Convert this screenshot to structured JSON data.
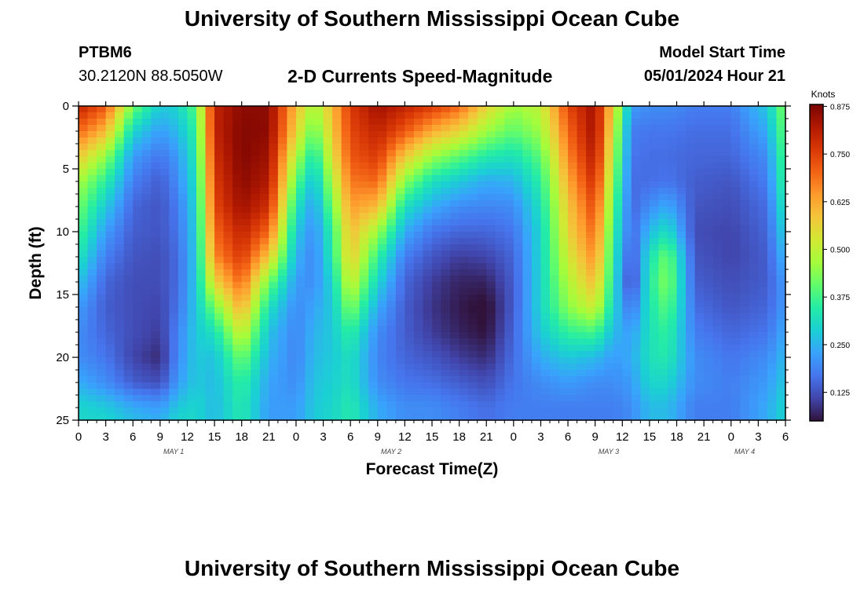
{
  "header": {
    "title": "University of Southern Mississippi Ocean Cube",
    "station_id": "PTBM6",
    "coordinates": "30.2120N  88.5050W",
    "subtitle": "2-D Currents Speed-Magnitude",
    "model_start_label": "Model Start Time",
    "model_start_value": "05/01/2024 Hour 21"
  },
  "footer": {
    "title": "University of Southern Mississippi Ocean Cube"
  },
  "colors": {
    "colormap": [
      "#30123b",
      "#4145ab",
      "#4675ed",
      "#39a2fc",
      "#1bcfd4",
      "#24eca6",
      "#61fc6c",
      "#a4fc3b",
      "#d1e834",
      "#f3c63a",
      "#fe9b2d",
      "#f36315",
      "#d93806",
      "#b11901",
      "#7a0402"
    ]
  },
  "chart_data": {
    "type": "heatmap",
    "xlabel": "Forecast Time(Z)",
    "ylabel": "Depth (ft)",
    "xlim": [
      0,
      78
    ],
    "ylim": [
      0,
      25
    ],
    "y_inverted": true,
    "x_ticks": [
      {
        "t": 0,
        "label": "0"
      },
      {
        "t": 3,
        "label": "3"
      },
      {
        "t": 6,
        "label": "6"
      },
      {
        "t": 9,
        "label": "9"
      },
      {
        "t": 12,
        "label": "12"
      },
      {
        "t": 15,
        "label": "15"
      },
      {
        "t": 18,
        "label": "18"
      },
      {
        "t": 21,
        "label": "21"
      },
      {
        "t": 24,
        "label": "0"
      },
      {
        "t": 27,
        "label": "3"
      },
      {
        "t": 30,
        "label": "6"
      },
      {
        "t": 33,
        "label": "9"
      },
      {
        "t": 36,
        "label": "12"
      },
      {
        "t": 39,
        "label": "15"
      },
      {
        "t": 42,
        "label": "18"
      },
      {
        "t": 45,
        "label": "21"
      },
      {
        "t": 48,
        "label": "0"
      },
      {
        "t": 51,
        "label": "3"
      },
      {
        "t": 54,
        "label": "6"
      },
      {
        "t": 57,
        "label": "9"
      },
      {
        "t": 60,
        "label": "12"
      },
      {
        "t": 63,
        "label": "15"
      },
      {
        "t": 66,
        "label": "18"
      },
      {
        "t": 69,
        "label": "21"
      },
      {
        "t": 72,
        "label": "0"
      },
      {
        "t": 75,
        "label": "3"
      },
      {
        "t": 78,
        "label": "6"
      }
    ],
    "y_ticks": [
      {
        "d": 0,
        "label": "0"
      },
      {
        "d": 5,
        "label": "5"
      },
      {
        "d": 10,
        "label": "10"
      },
      {
        "d": 15,
        "label": "15"
      },
      {
        "d": 20,
        "label": "20"
      },
      {
        "d": 25,
        "label": "25"
      }
    ],
    "day_labels": [
      {
        "t": 10.5,
        "label": "MAY 1"
      },
      {
        "t": 34.5,
        "label": "MAY 2"
      },
      {
        "t": 58.5,
        "label": "MAY 3"
      },
      {
        "t": 73.5,
        "label": "MAY 4"
      }
    ],
    "colorbar": {
      "title": "Knots",
      "min": 0.05,
      "max": 0.88,
      "ticks": [
        {
          "v": 0.125,
          "label": "0.125"
        },
        {
          "v": 0.25,
          "label": "0.250"
        },
        {
          "v": 0.375,
          "label": "0.375"
        },
        {
          "v": 0.5,
          "label": "0.500"
        },
        {
          "v": 0.625,
          "label": "0.625"
        },
        {
          "v": 0.75,
          "label": "0.750"
        },
        {
          "v": 0.875,
          "label": "0.875"
        }
      ]
    },
    "field_depths": [
      0,
      2,
      4,
      6,
      8,
      10,
      12,
      14,
      16,
      18,
      20,
      22,
      24,
      25
    ],
    "field": [
      {
        "t": 0,
        "v": [
          0.8,
          0.7,
          0.58,
          0.47,
          0.42,
          0.38,
          0.33,
          0.27,
          0.22,
          0.2,
          0.2,
          0.24,
          0.3,
          0.3
        ]
      },
      {
        "t": 3,
        "v": [
          0.72,
          0.6,
          0.45,
          0.35,
          0.28,
          0.22,
          0.18,
          0.15,
          0.14,
          0.15,
          0.17,
          0.2,
          0.28,
          0.3
        ]
      },
      {
        "t": 6,
        "v": [
          0.42,
          0.3,
          0.22,
          0.18,
          0.15,
          0.14,
          0.13,
          0.12,
          0.12,
          0.12,
          0.11,
          0.14,
          0.24,
          0.26
        ]
      },
      {
        "t": 9,
        "v": [
          0.28,
          0.22,
          0.17,
          0.14,
          0.13,
          0.13,
          0.12,
          0.12,
          0.11,
          0.1,
          0.08,
          0.12,
          0.22,
          0.24
        ]
      },
      {
        "t": 11,
        "v": [
          0.3,
          0.26,
          0.22,
          0.2,
          0.18,
          0.17,
          0.16,
          0.16,
          0.17,
          0.19,
          0.2,
          0.22,
          0.28,
          0.3
        ]
      },
      {
        "t": 13,
        "v": [
          0.4,
          0.36,
          0.34,
          0.32,
          0.3,
          0.29,
          0.28,
          0.28,
          0.28,
          0.28,
          0.28,
          0.28,
          0.3,
          0.3
        ]
      },
      {
        "t": 15,
        "v": [
          0.8,
          0.8,
          0.78,
          0.76,
          0.74,
          0.7,
          0.66,
          0.56,
          0.42,
          0.32,
          0.27,
          0.26,
          0.26,
          0.26
        ]
      },
      {
        "t": 18,
        "v": [
          0.86,
          0.87,
          0.87,
          0.86,
          0.84,
          0.8,
          0.76,
          0.7,
          0.62,
          0.52,
          0.42,
          0.36,
          0.34,
          0.34
        ]
      },
      {
        "t": 21,
        "v": [
          0.86,
          0.86,
          0.84,
          0.82,
          0.78,
          0.7,
          0.58,
          0.42,
          0.32,
          0.27,
          0.25,
          0.23,
          0.22,
          0.22
        ]
      },
      {
        "t": 24,
        "v": [
          0.6,
          0.56,
          0.48,
          0.4,
          0.33,
          0.28,
          0.25,
          0.22,
          0.2,
          0.19,
          0.19,
          0.2,
          0.22,
          0.22
        ]
      },
      {
        "t": 26,
        "v": [
          0.46,
          0.4,
          0.32,
          0.26,
          0.22,
          0.2,
          0.19,
          0.2,
          0.23,
          0.25,
          0.26,
          0.27,
          0.28,
          0.28
        ]
      },
      {
        "t": 28,
        "v": [
          0.6,
          0.58,
          0.54,
          0.48,
          0.42,
          0.36,
          0.34,
          0.3,
          0.28,
          0.28,
          0.28,
          0.29,
          0.3,
          0.3
        ]
      },
      {
        "t": 30,
        "v": [
          0.76,
          0.74,
          0.72,
          0.68,
          0.64,
          0.6,
          0.58,
          0.52,
          0.44,
          0.36,
          0.32,
          0.32,
          0.34,
          0.34
        ]
      },
      {
        "t": 33,
        "v": [
          0.84,
          0.8,
          0.76,
          0.7,
          0.6,
          0.46,
          0.36,
          0.3,
          0.24,
          0.2,
          0.19,
          0.2,
          0.24,
          0.24
        ]
      },
      {
        "t": 36,
        "v": [
          0.8,
          0.72,
          0.58,
          0.44,
          0.32,
          0.24,
          0.18,
          0.15,
          0.14,
          0.14,
          0.15,
          0.17,
          0.2,
          0.2
        ]
      },
      {
        "t": 39,
        "v": [
          0.76,
          0.62,
          0.46,
          0.32,
          0.24,
          0.17,
          0.13,
          0.1,
          0.09,
          0.1,
          0.13,
          0.16,
          0.2,
          0.2
        ]
      },
      {
        "t": 42,
        "v": [
          0.7,
          0.56,
          0.4,
          0.28,
          0.2,
          0.15,
          0.1,
          0.07,
          0.06,
          0.07,
          0.1,
          0.14,
          0.18,
          0.18
        ]
      },
      {
        "t": 45,
        "v": [
          0.56,
          0.46,
          0.34,
          0.24,
          0.19,
          0.15,
          0.11,
          0.07,
          0.04,
          0.05,
          0.08,
          0.12,
          0.16,
          0.16
        ]
      },
      {
        "t": 48,
        "v": [
          0.46,
          0.4,
          0.32,
          0.25,
          0.2,
          0.17,
          0.15,
          0.14,
          0.14,
          0.15,
          0.16,
          0.17,
          0.18,
          0.18
        ]
      },
      {
        "t": 51,
        "v": [
          0.5,
          0.46,
          0.4,
          0.35,
          0.32,
          0.3,
          0.3,
          0.3,
          0.3,
          0.28,
          0.24,
          0.2,
          0.18,
          0.18
        ]
      },
      {
        "t": 54,
        "v": [
          0.74,
          0.7,
          0.66,
          0.62,
          0.58,
          0.56,
          0.52,
          0.48,
          0.44,
          0.36,
          0.28,
          0.22,
          0.18,
          0.18
        ]
      },
      {
        "t": 57,
        "v": [
          0.84,
          0.84,
          0.82,
          0.78,
          0.74,
          0.7,
          0.66,
          0.6,
          0.52,
          0.38,
          0.26,
          0.2,
          0.18,
          0.18
        ]
      },
      {
        "t": 59,
        "v": [
          0.56,
          0.52,
          0.48,
          0.44,
          0.4,
          0.36,
          0.34,
          0.32,
          0.3,
          0.26,
          0.22,
          0.2,
          0.18,
          0.18
        ]
      },
      {
        "t": 61,
        "v": [
          0.22,
          0.18,
          0.17,
          0.16,
          0.15,
          0.15,
          0.12,
          0.1,
          0.16,
          0.22,
          0.24,
          0.22,
          0.2,
          0.2
        ]
      },
      {
        "t": 63,
        "v": [
          0.2,
          0.17,
          0.16,
          0.16,
          0.2,
          0.26,
          0.32,
          0.34,
          0.33,
          0.32,
          0.32,
          0.3,
          0.26,
          0.26
        ]
      },
      {
        "t": 65,
        "v": [
          0.2,
          0.17,
          0.16,
          0.17,
          0.24,
          0.32,
          0.42,
          0.44,
          0.4,
          0.36,
          0.34,
          0.3,
          0.26,
          0.26
        ]
      },
      {
        "t": 68,
        "v": [
          0.18,
          0.16,
          0.15,
          0.14,
          0.13,
          0.12,
          0.13,
          0.14,
          0.16,
          0.18,
          0.2,
          0.2,
          0.18,
          0.18
        ]
      },
      {
        "t": 72,
        "v": [
          0.18,
          0.16,
          0.15,
          0.13,
          0.12,
          0.11,
          0.11,
          0.12,
          0.13,
          0.15,
          0.17,
          0.18,
          0.18,
          0.18
        ]
      },
      {
        "t": 76,
        "v": [
          0.28,
          0.24,
          0.2,
          0.18,
          0.16,
          0.15,
          0.14,
          0.14,
          0.15,
          0.17,
          0.2,
          0.22,
          0.24,
          0.24
        ]
      },
      {
        "t": 78,
        "v": [
          0.44,
          0.42,
          0.4,
          0.38,
          0.34,
          0.3,
          0.26,
          0.22,
          0.22,
          0.24,
          0.26,
          0.28,
          0.3,
          0.3
        ]
      }
    ]
  }
}
